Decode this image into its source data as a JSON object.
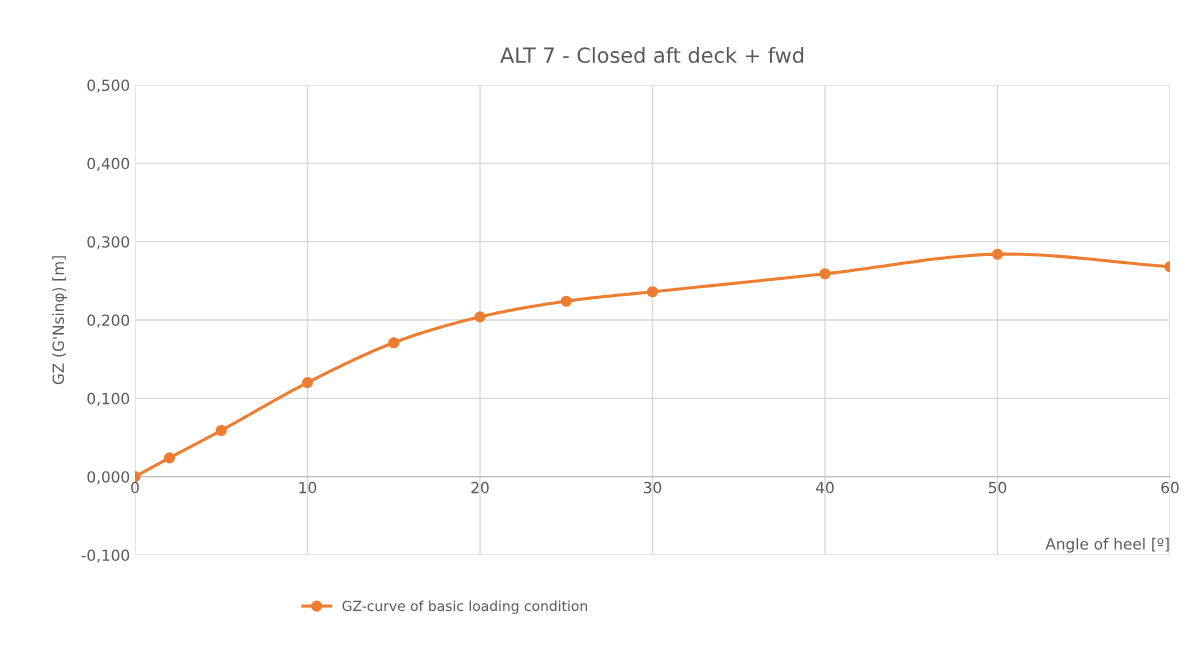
{
  "chart_data": {
    "type": "line",
    "title": "ALT 7 - Closed aft deck + fwd",
    "xlabel": "Angle of heel [º]",
    "ylabel": "GZ (G'Nsinφ) [m]",
    "x": [
      0,
      2,
      5,
      10,
      15,
      20,
      25,
      30,
      40,
      50,
      60
    ],
    "series": [
      {
        "name": "GZ-curve of basic loading condition",
        "color": "#ed7d31",
        "values": [
          0.0,
          0.024,
          0.059,
          0.12,
          0.171,
          0.204,
          0.224,
          0.236,
          0.259,
          0.284,
          0.268
        ]
      }
    ],
    "xlim": [
      0,
      60
    ],
    "xticks": [
      0,
      10,
      20,
      30,
      40,
      50,
      60
    ],
    "ylim": [
      -0.1,
      0.5
    ],
    "yticks": [
      {
        "value": -0.1,
        "label": "-0,100"
      },
      {
        "value": 0,
        "label": "0,000"
      },
      {
        "value": 0.1,
        "label": "0,100"
      },
      {
        "value": 0.2,
        "label": "0,200"
      },
      {
        "value": 0.3,
        "label": "0,300"
      },
      {
        "value": 0.4,
        "label": "0,400"
      },
      {
        "value": 0.5,
        "label": "0,500"
      }
    ],
    "grid": true,
    "legend": "bottom",
    "marker": "circle",
    "line_style": "solid"
  }
}
